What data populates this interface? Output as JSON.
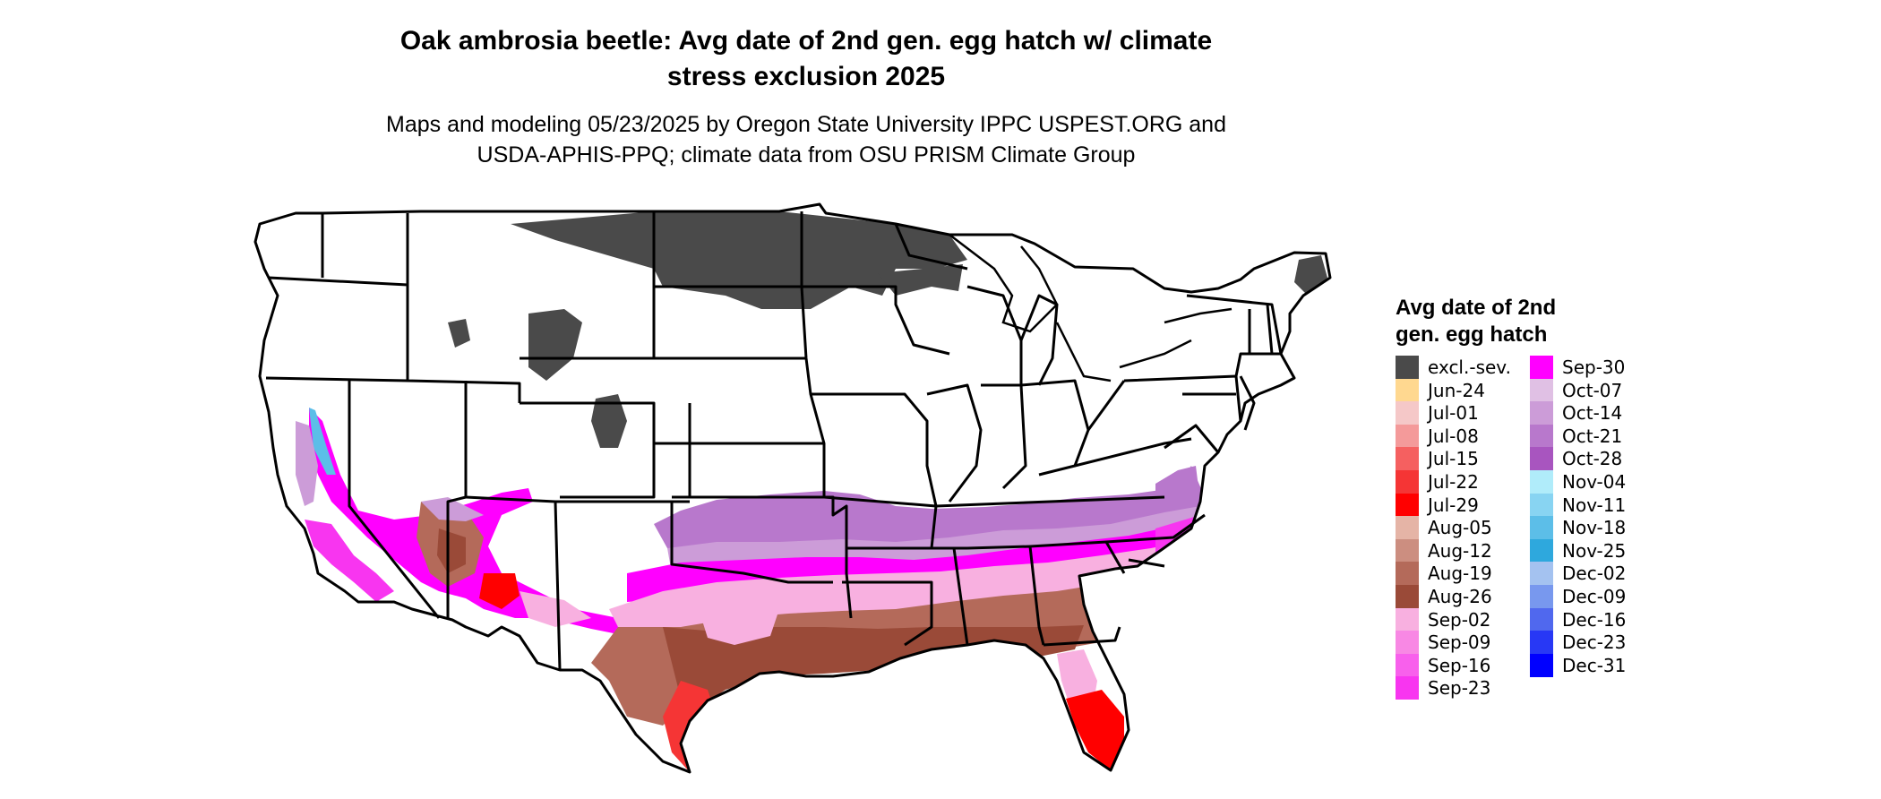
{
  "title": {
    "line1": "Oak ambrosia beetle: Avg date of 2nd gen. egg hatch w/ climate",
    "line2": "stress exclusion 2025"
  },
  "subtitle": {
    "line1": "Maps and modeling 05/23/2025 by Oregon State University IPPC USPEST.ORG and",
    "line2": "USDA-APHIS-PPQ; climate data from OSU PRISM Climate Group"
  },
  "legend": {
    "title_line1": "Avg date of 2nd",
    "title_line2": "gen. egg hatch",
    "items": [
      {
        "label": "excl.-sev.",
        "color": "#4a4a4a"
      },
      {
        "label": "Jun-24",
        "color": "#ffd890"
      },
      {
        "label": "Jul-01",
        "color": "#f5c8c8"
      },
      {
        "label": "Jul-08",
        "color": "#f49a9a"
      },
      {
        "label": "Jul-15",
        "color": "#f56060"
      },
      {
        "label": "Jul-22",
        "color": "#f53535"
      },
      {
        "label": "Jul-29",
        "color": "#ff0000"
      },
      {
        "label": "Aug-05",
        "color": "#e5b4a6"
      },
      {
        "label": "Aug-12",
        "color": "#cc8e80"
      },
      {
        "label": "Aug-19",
        "color": "#b46a5a"
      },
      {
        "label": "Aug-26",
        "color": "#9a4a38"
      },
      {
        "label": "Sep-02",
        "color": "#f8b0e0"
      },
      {
        "label": "Sep-09",
        "color": "#f888e4"
      },
      {
        "label": "Sep-16",
        "color": "#f860ec"
      },
      {
        "label": "Sep-23",
        "color": "#f835f0"
      },
      {
        "label": "Sep-30",
        "color": "#ff00ff"
      },
      {
        "label": "Oct-07",
        "color": "#e0c0e4"
      },
      {
        "label": "Oct-14",
        "color": "#cc9cd8"
      },
      {
        "label": "Oct-21",
        "color": "#b878cc"
      },
      {
        "label": "Oct-28",
        "color": "#a855bf"
      },
      {
        "label": "Nov-04",
        "color": "#b0ecfa"
      },
      {
        "label": "Nov-11",
        "color": "#88d4f2"
      },
      {
        "label": "Nov-18",
        "color": "#5cbee8"
      },
      {
        "label": "Nov-25",
        "color": "#2ea8dd"
      },
      {
        "label": "Dec-02",
        "color": "#a4c2f0"
      },
      {
        "label": "Dec-09",
        "color": "#7898ee"
      },
      {
        "label": "Dec-16",
        "color": "#5068ee"
      },
      {
        "label": "Dec-23",
        "color": "#2838f5"
      },
      {
        "label": "Dec-31",
        "color": "#0000ff"
      }
    ]
  },
  "map": {
    "state_outline_color": "#000000",
    "region_colors": {
      "excluded": "#4a4a4a",
      "gulf_brown": "#9a4a38",
      "brown_light": "#b46a5a",
      "florida_red": "#ff0000",
      "texas_red": "#f53535",
      "pink": "#f8b0e0",
      "magenta": "#ff00ff",
      "magenta_band": "#f835f0",
      "lavender": "#b878cc",
      "lavender_light": "#cc9cd8",
      "cyan": "#5cbee8"
    }
  }
}
